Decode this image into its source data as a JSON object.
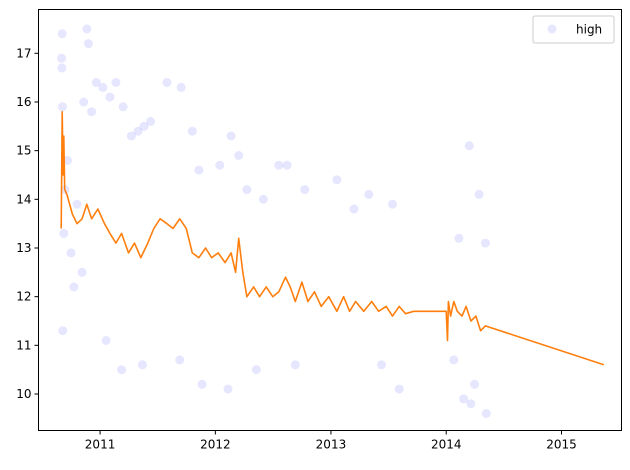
{
  "chart_data": {
    "type": "scatter",
    "x_type": "date",
    "xlim": [
      "2010-06-20",
      "2015-07-10"
    ],
    "ylim": [
      9.25,
      17.9
    ],
    "x_ticks": [
      "2011-01-01",
      "2012-01-01",
      "2013-01-01",
      "2014-01-01",
      "2015-01-01"
    ],
    "x_tick_labels": [
      "2011",
      "2012",
      "2013",
      "2014",
      "2015"
    ],
    "y_ticks": [
      10,
      11,
      12,
      13,
      14,
      15,
      16,
      17
    ],
    "y_tick_labels": [
      "10",
      "11",
      "12",
      "13",
      "14",
      "15",
      "16",
      "17"
    ],
    "grid": false,
    "legend": {
      "position": "top-right",
      "entries": [
        "high"
      ]
    },
    "series": [
      {
        "name": "high",
        "kind": "scatter",
        "color": "#8080ff",
        "opacity": 0.2,
        "points": [
          [
            "2010-09-01",
            16.9
          ],
          [
            "2010-09-03",
            17.4
          ],
          [
            "2010-09-02",
            16.7
          ],
          [
            "2010-09-04",
            15.9
          ],
          [
            "2010-09-05",
            11.3
          ],
          [
            "2010-09-08",
            13.3
          ],
          [
            "2010-09-12",
            14.2
          ],
          [
            "2010-09-20",
            14.8
          ],
          [
            "2010-10-01",
            12.9
          ],
          [
            "2010-10-10",
            12.2
          ],
          [
            "2010-10-20",
            13.9
          ],
          [
            "2010-11-05",
            12.5
          ],
          [
            "2010-11-10",
            16.0
          ],
          [
            "2010-11-20",
            17.5
          ],
          [
            "2010-11-25",
            17.2
          ],
          [
            "2010-12-05",
            15.8
          ],
          [
            "2010-12-20",
            16.4
          ],
          [
            "2011-01-10",
            16.3
          ],
          [
            "2011-02-01",
            16.1
          ],
          [
            "2011-02-20",
            16.4
          ],
          [
            "2011-03-15",
            15.9
          ],
          [
            "2011-04-10",
            15.3
          ],
          [
            "2011-05-01",
            15.4
          ],
          [
            "2011-05-20",
            15.5
          ],
          [
            "2011-06-10",
            15.6
          ],
          [
            "2011-08-01",
            16.4
          ],
          [
            "2011-09-15",
            16.3
          ],
          [
            "2011-10-20",
            15.4
          ],
          [
            "2011-11-10",
            14.6
          ],
          [
            "2012-01-15",
            14.7
          ],
          [
            "2012-02-20",
            15.3
          ],
          [
            "2012-03-15",
            14.9
          ],
          [
            "2012-04-10",
            14.2
          ],
          [
            "2012-06-01",
            14.0
          ],
          [
            "2012-07-20",
            14.7
          ],
          [
            "2012-08-15",
            14.7
          ],
          [
            "2012-10-10",
            14.2
          ],
          [
            "2013-01-20",
            14.4
          ],
          [
            "2013-03-15",
            13.8
          ],
          [
            "2013-05-01",
            14.1
          ],
          [
            "2013-07-15",
            13.9
          ],
          [
            "2014-02-10",
            13.2
          ],
          [
            "2014-03-15",
            15.1
          ],
          [
            "2014-04-15",
            14.1
          ],
          [
            "2014-05-05",
            13.1
          ],
          [
            "2011-01-20",
            11.1
          ],
          [
            "2011-03-10",
            10.5
          ],
          [
            "2011-05-15",
            10.6
          ],
          [
            "2011-09-10",
            10.7
          ],
          [
            "2011-11-20",
            10.2
          ],
          [
            "2012-02-10",
            10.1
          ],
          [
            "2012-05-10",
            10.5
          ],
          [
            "2012-09-10",
            10.6
          ],
          [
            "2013-06-10",
            10.6
          ],
          [
            "2013-08-05",
            10.1
          ],
          [
            "2014-02-25",
            9.9
          ],
          [
            "2014-03-20",
            9.8
          ],
          [
            "2014-05-08",
            9.6
          ],
          [
            "2014-04-01",
            10.2
          ],
          [
            "2014-01-25",
            10.7
          ]
        ]
      },
      {
        "name": "",
        "kind": "line",
        "color": "#ff7f0e",
        "points": [
          [
            "2010-08-31",
            13.4
          ],
          [
            "2010-09-03",
            15.8
          ],
          [
            "2010-09-06",
            14.5
          ],
          [
            "2010-09-08",
            15.3
          ],
          [
            "2010-09-11",
            14.2
          ],
          [
            "2010-09-18",
            14.1
          ],
          [
            "2010-10-05",
            13.7
          ],
          [
            "2010-10-20",
            13.5
          ],
          [
            "2010-11-05",
            13.6
          ],
          [
            "2010-11-20",
            13.9
          ],
          [
            "2010-12-05",
            13.6
          ],
          [
            "2010-12-25",
            13.8
          ],
          [
            "2011-01-15",
            13.5
          ],
          [
            "2011-02-01",
            13.3
          ],
          [
            "2011-02-20",
            13.1
          ],
          [
            "2011-03-10",
            13.3
          ],
          [
            "2011-04-01",
            12.9
          ],
          [
            "2011-04-20",
            13.1
          ],
          [
            "2011-05-10",
            12.8
          ],
          [
            "2011-06-01",
            13.1
          ],
          [
            "2011-06-20",
            13.4
          ],
          [
            "2011-07-10",
            13.6
          ],
          [
            "2011-08-01",
            13.5
          ],
          [
            "2011-08-20",
            13.4
          ],
          [
            "2011-09-10",
            13.6
          ],
          [
            "2011-10-01",
            13.4
          ],
          [
            "2011-10-20",
            12.9
          ],
          [
            "2011-11-10",
            12.8
          ],
          [
            "2011-12-01",
            13.0
          ],
          [
            "2011-12-20",
            12.8
          ],
          [
            "2012-01-10",
            12.9
          ],
          [
            "2012-02-01",
            12.7
          ],
          [
            "2012-02-20",
            12.9
          ],
          [
            "2012-03-05",
            12.5
          ],
          [
            "2012-03-15",
            13.2
          ],
          [
            "2012-03-28",
            12.5
          ],
          [
            "2012-04-10",
            12.0
          ],
          [
            "2012-05-01",
            12.2
          ],
          [
            "2012-05-20",
            12.0
          ],
          [
            "2012-06-10",
            12.2
          ],
          [
            "2012-07-01",
            12.0
          ],
          [
            "2012-07-20",
            12.1
          ],
          [
            "2012-08-10",
            12.4
          ],
          [
            "2012-08-25",
            12.2
          ],
          [
            "2012-09-10",
            11.9
          ],
          [
            "2012-10-01",
            12.3
          ],
          [
            "2012-10-20",
            11.9
          ],
          [
            "2012-11-10",
            12.1
          ],
          [
            "2012-12-01",
            11.8
          ],
          [
            "2012-12-25",
            12.0
          ],
          [
            "2013-01-20",
            11.7
          ],
          [
            "2013-02-10",
            12.0
          ],
          [
            "2013-03-01",
            11.7
          ],
          [
            "2013-03-20",
            11.9
          ],
          [
            "2013-04-15",
            11.7
          ],
          [
            "2013-05-10",
            11.9
          ],
          [
            "2013-06-01",
            11.7
          ],
          [
            "2013-06-25",
            11.8
          ],
          [
            "2013-07-15",
            11.6
          ],
          [
            "2013-08-05",
            11.8
          ],
          [
            "2013-08-25",
            11.65
          ],
          [
            "2013-09-20",
            11.7
          ],
          [
            "2014-01-01",
            11.7
          ],
          [
            "2014-01-05",
            11.1
          ],
          [
            "2014-01-08",
            11.9
          ],
          [
            "2014-01-15",
            11.6
          ],
          [
            "2014-01-25",
            11.9
          ],
          [
            "2014-02-05",
            11.7
          ],
          [
            "2014-02-20",
            11.6
          ],
          [
            "2014-03-05",
            11.8
          ],
          [
            "2014-03-20",
            11.5
          ],
          [
            "2014-04-05",
            11.6
          ],
          [
            "2014-04-20",
            11.3
          ],
          [
            "2014-05-05",
            11.4
          ],
          [
            "2015-05-15",
            10.6
          ]
        ]
      }
    ]
  }
}
